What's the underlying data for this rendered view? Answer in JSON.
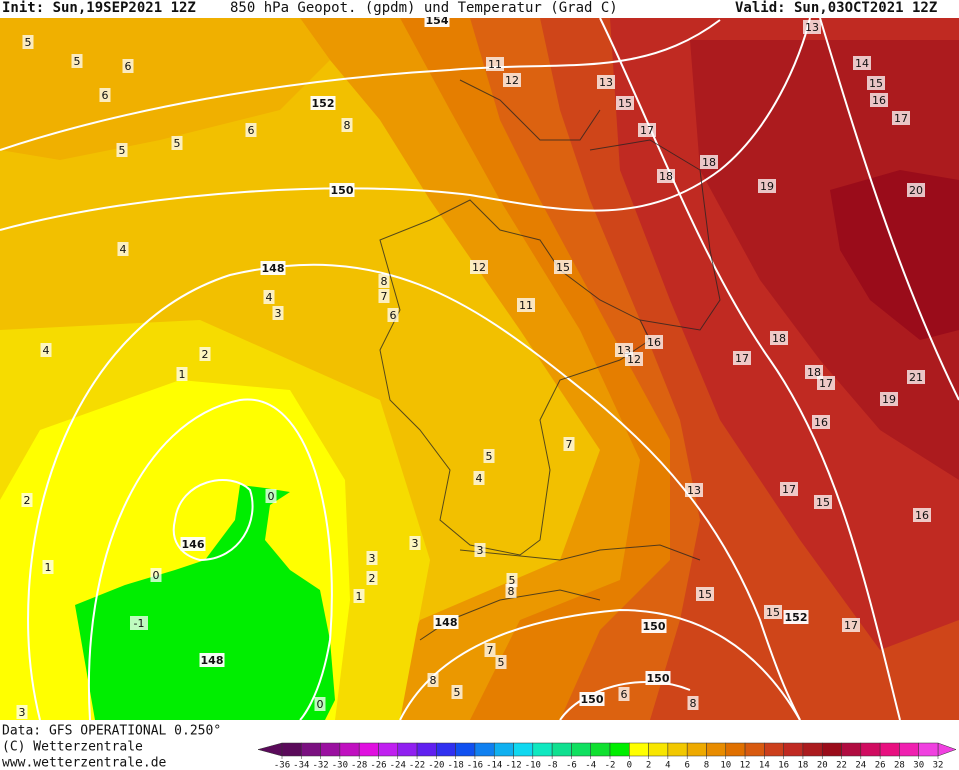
{
  "header": {
    "init": "Init: Sun,19SEP2021 12Z",
    "title": "850 hPa Geopot. (gpdm) und Temperatur (Grad C)",
    "valid": "Valid: Sun,03OCT2021 12Z"
  },
  "footer": {
    "source": "Data: GFS OPERATIONAL 0.250°",
    "copyright": "(C) Wetterzentrale",
    "url": "www.wetterzentrale.de"
  },
  "colorbar": {
    "ticks": [
      -36,
      -34,
      -32,
      -30,
      -28,
      -26,
      -24,
      -22,
      -20,
      -18,
      -16,
      -14,
      -12,
      -10,
      -8,
      -6,
      -4,
      -2,
      0,
      2,
      4,
      6,
      8,
      10,
      12,
      14,
      16,
      18,
      20,
      22,
      24,
      26,
      28,
      30,
      32
    ],
    "colors": [
      "#5a0a5a",
      "#7a1080",
      "#9a10a0",
      "#c010c0",
      "#e010e0",
      "#c020f0",
      "#9020f0",
      "#6020f0",
      "#3030f0",
      "#1050f0",
      "#1080f0",
      "#10b0f0",
      "#10d8f0",
      "#10e8c0",
      "#10e090",
      "#10e060",
      "#10e030",
      "#00ee00",
      "#ffff00",
      "#f8e600",
      "#f2c800",
      "#eeaa00",
      "#e88c00",
      "#e07000",
      "#d85a10",
      "#cc3f1c",
      "#c02a22",
      "#ab1b1e",
      "#9a0c1a",
      "#b00c40",
      "#d00c60",
      "#e81080",
      "#f020b0",
      "#f040e0"
    ]
  },
  "geopotential_labels": [
    154,
    152,
    150,
    148,
    146,
    148,
    148,
    150,
    150,
    150,
    152
  ],
  "temperature_labels": [
    5,
    5,
    6,
    6,
    5,
    5,
    6,
    8,
    11,
    12,
    13,
    15,
    13,
    14,
    15,
    16,
    17,
    17,
    18,
    18,
    19,
    20,
    4,
    12,
    15,
    8,
    7,
    4,
    3,
    6,
    11,
    4,
    2,
    1,
    13,
    16,
    12,
    17,
    18,
    18,
    17,
    21,
    19,
    16,
    7,
    5,
    4,
    13,
    17,
    15,
    16,
    0,
    2,
    3,
    3,
    3,
    2,
    1,
    1,
    0,
    -1,
    5,
    8,
    15,
    15,
    17,
    7,
    5,
    8,
    5,
    6,
    8,
    0,
    3
  ]
}
